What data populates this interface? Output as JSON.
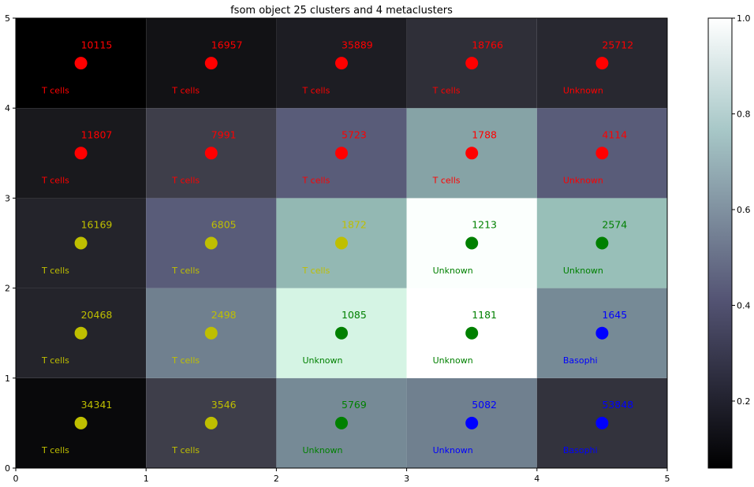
{
  "chart_data": {
    "type": "heatmap",
    "title": "fsom object 25 clusters and 4 metaclusters",
    "xlabel": "",
    "ylabel": "",
    "xlim": [
      0,
      5
    ],
    "ylim": [
      0,
      5
    ],
    "xticks": [
      "0",
      "1",
      "2",
      "3",
      "4",
      "5"
    ],
    "yticks": [
      "0",
      "1",
      "2",
      "3",
      "4",
      "5"
    ],
    "grid": false,
    "colormap": "bone",
    "colorbar": {
      "range": [
        0.06,
        1.0
      ],
      "ticks": [
        0.2,
        0.4,
        0.6,
        0.8,
        1.0
      ],
      "tick_labels": [
        "0.2",
        "0.4",
        "0.6",
        "0.8",
        "1.0"
      ],
      "placement": "right"
    },
    "metacluster_colors": {
      "red": "#ff0000",
      "yellow": "#bfbf00",
      "green": "#008000",
      "blue": "#0000ff"
    },
    "cells": [
      {
        "row": 0,
        "col": 0,
        "value": 0.04,
        "count": "34341",
        "label": "T cells",
        "color": "yellow"
      },
      {
        "row": 0,
        "col": 1,
        "value": 0.28,
        "count": "3546",
        "label": "T cells",
        "color": "yellow"
      },
      {
        "row": 0,
        "col": 2,
        "value": 0.53,
        "count": "5769",
        "label": "Unknown",
        "color": "green"
      },
      {
        "row": 0,
        "col": 3,
        "value": 0.5,
        "count": "5082",
        "label": "Unknown",
        "color": "blue"
      },
      {
        "row": 0,
        "col": 4,
        "value": 0.23,
        "count": "53848",
        "label": "Basophi",
        "color": "blue"
      },
      {
        "row": 1,
        "col": 0,
        "value": 0.16,
        "count": "20468",
        "label": "T cells",
        "color": "yellow"
      },
      {
        "row": 1,
        "col": 1,
        "value": 0.5,
        "count": "2498",
        "label": "T cells",
        "color": "yellow"
      },
      {
        "row": 1,
        "col": 2,
        "value": 0.88,
        "count": "1085",
        "label": "Unknown",
        "color": "green"
      },
      {
        "row": 1,
        "col": 3,
        "value": 1.0,
        "count": "1181",
        "label": "Unknown",
        "color": "green"
      },
      {
        "row": 1,
        "col": 4,
        "value": 0.53,
        "count": "1645",
        "label": "Basophi",
        "color": "blue"
      },
      {
        "row": 2,
        "col": 0,
        "value": 0.16,
        "count": "16169",
        "label": "T cells",
        "color": "yellow"
      },
      {
        "row": 2,
        "col": 1,
        "value": 0.4,
        "count": "6805",
        "label": "T cells",
        "color": "yellow"
      },
      {
        "row": 2,
        "col": 2,
        "value": 0.66,
        "count": "1872",
        "label": "T cells",
        "color": "yellow"
      },
      {
        "row": 2,
        "col": 3,
        "value": 0.99,
        "count": "1213",
        "label": "Unknown",
        "color": "green"
      },
      {
        "row": 2,
        "col": 4,
        "value": 0.68,
        "count": "2574",
        "label": "Unknown",
        "color": "green"
      },
      {
        "row": 3,
        "col": 0,
        "value": 0.11,
        "count": "11807",
        "label": "T cells",
        "color": "red"
      },
      {
        "row": 3,
        "col": 1,
        "value": 0.28,
        "count": "7991",
        "label": "T cells",
        "color": "red"
      },
      {
        "row": 3,
        "col": 2,
        "value": 0.4,
        "count": "5723",
        "label": "T cells",
        "color": "red"
      },
      {
        "row": 3,
        "col": 3,
        "value": 0.6,
        "count": "1788",
        "label": "T cells",
        "color": "red"
      },
      {
        "row": 3,
        "col": 4,
        "value": 0.4,
        "count": "4114",
        "label": "Unknown",
        "color": "red"
      },
      {
        "row": 4,
        "col": 0,
        "value": 0.0,
        "count": "10115",
        "label": "T cells",
        "color": "red"
      },
      {
        "row": 4,
        "col": 1,
        "value": 0.08,
        "count": "16957",
        "label": "T cells",
        "color": "red"
      },
      {
        "row": 4,
        "col": 2,
        "value": 0.13,
        "count": "35889",
        "label": "T cells",
        "color": "red"
      },
      {
        "row": 4,
        "col": 3,
        "value": 0.21,
        "count": "18766",
        "label": "T cells",
        "color": "red"
      },
      {
        "row": 4,
        "col": 4,
        "value": 0.18,
        "count": "25712",
        "label": "Unknown",
        "color": "red"
      }
    ]
  }
}
